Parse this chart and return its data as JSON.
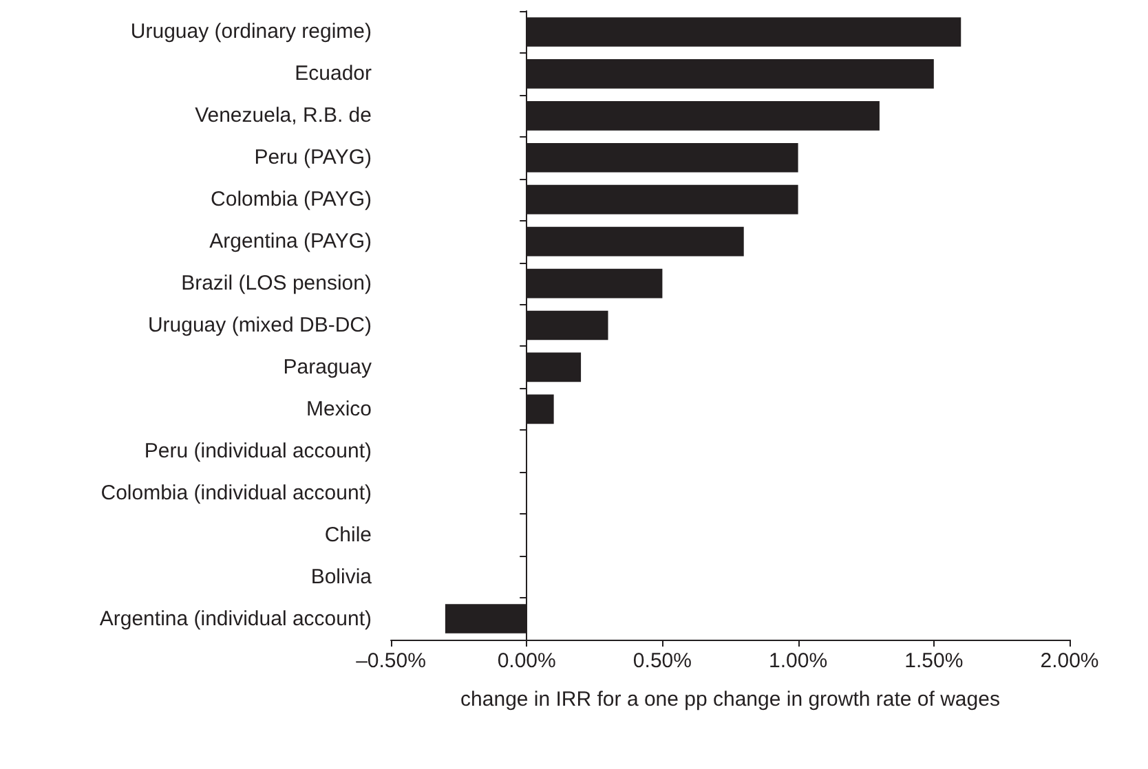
{
  "chart_data": {
    "type": "bar",
    "orientation": "horizontal",
    "xlabel": "change in IRR for a one pp change in growth rate of wages",
    "categories": [
      "Uruguay (ordinary regime)",
      "Ecuador",
      "Venezuela, R.B. de",
      "Peru (PAYG)",
      "Colombia (PAYG)",
      "Argentina (PAYG)",
      "Brazil (LOS pension)",
      "Uruguay (mixed DB-DC)",
      "Paraguay",
      "Mexico",
      "Peru (individual account)",
      "Colombia (individual account)",
      "Chile",
      "Bolivia",
      "Argentina (individual account)"
    ],
    "values": [
      1.6,
      1.5,
      1.3,
      1.0,
      1.0,
      0.8,
      0.5,
      0.3,
      0.2,
      0.1,
      0,
      0,
      0,
      0,
      -0.3
    ],
    "color": "#231f20",
    "xlim": [
      -0.5,
      2.0
    ],
    "xticks": [
      {
        "value": -0.5,
        "label": "–0.50%"
      },
      {
        "value": 0,
        "label": "0.00%"
      },
      {
        "value": 0.5,
        "label": "0.50%"
      },
      {
        "value": 1.0,
        "label": "1.00%"
      },
      {
        "value": 1.5,
        "label": "1.50%"
      },
      {
        "value": 2.0,
        "label": "2.00%"
      }
    ]
  }
}
